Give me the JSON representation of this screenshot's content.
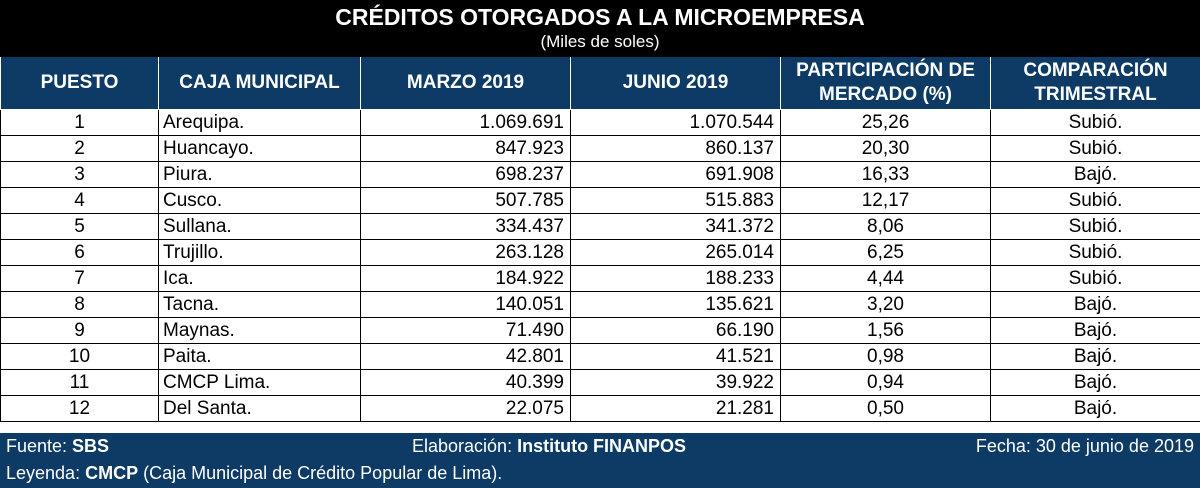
{
  "title": "CRÉDITOS OTORGADOS A LA MICROEMPRESA",
  "subtitle": "(Miles de soles)",
  "columns": [
    "PUESTO",
    "CAJA MUNICIPAL",
    "MARZO 2019",
    "JUNIO 2019",
    "PARTICIPACIÓN DE MERCADO (%)",
    "COMPARACIÓN TRIMESTRAL"
  ],
  "rows": [
    {
      "puesto": "1",
      "caja": "Arequipa.",
      "marzo": "1.069.691",
      "junio": "1.070.544",
      "participacion": "25,26",
      "comparacion": "Subió."
    },
    {
      "puesto": "2",
      "caja": "Huancayo.",
      "marzo": "847.923",
      "junio": "860.137",
      "participacion": "20,30",
      "comparacion": "Subió."
    },
    {
      "puesto": "3",
      "caja": "Piura.",
      "marzo": "698.237",
      "junio": "691.908",
      "participacion": "16,33",
      "comparacion": "Bajó."
    },
    {
      "puesto": "4",
      "caja": "Cusco.",
      "marzo": "507.785",
      "junio": "515.883",
      "participacion": "12,17",
      "comparacion": "Subió."
    },
    {
      "puesto": "5",
      "caja": "Sullana.",
      "marzo": "334.437",
      "junio": "341.372",
      "participacion": "8,06",
      "comparacion": "Subió."
    },
    {
      "puesto": "6",
      "caja": "Trujillo.",
      "marzo": "263.128",
      "junio": "265.014",
      "participacion": "6,25",
      "comparacion": "Subió."
    },
    {
      "puesto": "7",
      "caja": "Ica.",
      "marzo": "184.922",
      "junio": "188.233",
      "participacion": "4,44",
      "comparacion": "Subió."
    },
    {
      "puesto": "8",
      "caja": "Tacna.",
      "marzo": "140.051",
      "junio": "135.621",
      "participacion": "3,20",
      "comparacion": "Bajó."
    },
    {
      "puesto": "9",
      "caja": "Maynas.",
      "marzo": "71.490",
      "junio": "66.190",
      "participacion": "1,56",
      "comparacion": "Bajó."
    },
    {
      "puesto": "10",
      "caja": "Paita.",
      "marzo": "42.801",
      "junio": "41.521",
      "participacion": "0,98",
      "comparacion": "Bajó."
    },
    {
      "puesto": "11",
      "caja": "CMCP Lima.",
      "marzo": "40.399",
      "junio": "39.922",
      "participacion": "0,94",
      "comparacion": "Bajó."
    },
    {
      "puesto": "12",
      "caja": "Del Santa.",
      "marzo": "22.075",
      "junio": "21.281",
      "participacion": "0,50",
      "comparacion": "Bajó."
    }
  ],
  "footer": {
    "fuente_label": "Fuente: ",
    "fuente_value": "SBS",
    "elaboracion_label": "Elaboración: ",
    "elaboracion_value": "Instituto FINANPOS",
    "fecha": "Fecha: 30 de junio de 2019",
    "leyenda_label": "Leyenda: ",
    "leyenda_value": "CMCP",
    "leyenda_text": " (Caja Municipal de Crédito Popular de Lima)."
  },
  "colors": {
    "header_bg": "#0d3b66",
    "banner_bg": "#000000",
    "text_on_dark": "#ffffff"
  }
}
